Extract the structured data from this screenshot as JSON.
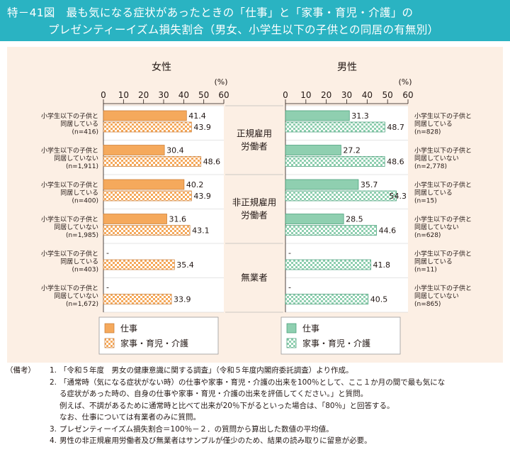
{
  "title": {
    "line1": "特－41図　最も気になる症状があったときの「仕事」と「家事・育児・介護」の",
    "line2": "プレゼンティーイズム損失割合（男女、小学生以下の子供との同居の有無別）"
  },
  "notes": {
    "header": "（備考）",
    "items": [
      {
        "num": "1.",
        "lines": [
          "「令和５年度　男女の健康意識に関する調査」（令和５年度内閣府委託調査）より作成。"
        ]
      },
      {
        "num": "2.",
        "lines": [
          "「通常時（気になる症状がない時）の仕事や家事・育児・介護の出来を100％として、ここ１か月の間で最も気にな",
          "る症状があった時の、自身の仕事や家事・育児・介護の出来を評価してください。」と質問。",
          "例えば、不調があるために通常時と比べて出来が20％下がるといった場合は、「80％」と回答する。",
          "なお、仕事については有業者のみに質問。"
        ]
      },
      {
        "num": "3.",
        "lines": [
          "プレゼンティーイズム損失割合＝100％－２．の質問から算出した数値の平均値。"
        ]
      },
      {
        "num": "4.",
        "lines": [
          "男性の非正規雇用労働者及び無業者はサンプルが僅少のため、結果の読み取りに留意が必要。"
        ]
      }
    ]
  },
  "chart_data": {
    "type": "bar",
    "orientation": "horizontal",
    "unit": "(%)",
    "xlim": [
      0,
      60
    ],
    "xticks": [
      0,
      10,
      20,
      30,
      40,
      50,
      60
    ],
    "colors": {
      "work_female": "#f5a95c",
      "work_male": "#8fcfb0",
      "home_female": "#f5a95c",
      "home_male": "#8fcfb0"
    },
    "groups": [
      "正規雇用\n労働者",
      "非正規雇用\n労働者",
      "無業者"
    ],
    "series": [
      {
        "name": "仕事"
      },
      {
        "name": "家事・育児・介護"
      }
    ],
    "panels": [
      {
        "title": "女性",
        "rows": [
          {
            "label": [
              "小学生以下の子供と",
              "同居している",
              "(n=416)"
            ],
            "work": 41.4,
            "home": 43.9
          },
          {
            "label": [
              "小学生以下の子供と",
              "同居していない",
              "(n=1,911)"
            ],
            "work": 30.4,
            "home": 48.6
          },
          {
            "label": [
              "小学生以下の子供と",
              "同居している",
              "(n=400)"
            ],
            "work": 40.2,
            "home": 43.9
          },
          {
            "label": [
              "小学生以下の子供と",
              "同居していない",
              "(n=1,985)"
            ],
            "work": 31.6,
            "home": 43.1
          },
          {
            "label": [
              "小学生以下の子供と",
              "同居している",
              "(n=403)"
            ],
            "work": null,
            "work_text": "-",
            "home": 35.4
          },
          {
            "label": [
              "小学生以下の子供と",
              "同居していない",
              "(n=1,672)"
            ],
            "work": null,
            "work_text": "-",
            "home": 33.9
          }
        ]
      },
      {
        "title": "男性",
        "rows": [
          {
            "label": [
              "小学生以下の子供と",
              "同居している",
              "(n=828)"
            ],
            "work": 31.3,
            "home": 48.7
          },
          {
            "label": [
              "小学生以下の子供と",
              "同居していない",
              "(n=2,778)"
            ],
            "work": 27.2,
            "home": 48.6
          },
          {
            "label": [
              "小学生以下の子供と",
              "同居している",
              "(n=15)"
            ],
            "work": 35.7,
            "home": 54.3
          },
          {
            "label": [
              "小学生以下の子供と",
              "同居していない",
              "(n=628)"
            ],
            "work": 28.5,
            "home": 44.6
          },
          {
            "label": [
              "小学生以下の子供と",
              "同居している",
              "(n=11)"
            ],
            "work": null,
            "work_text": "-",
            "home": 41.8
          },
          {
            "label": [
              "小学生以下の子供と",
              "同居していない",
              "(n=865)"
            ],
            "work": null,
            "work_text": "-",
            "home": 40.5
          }
        ]
      }
    ]
  }
}
